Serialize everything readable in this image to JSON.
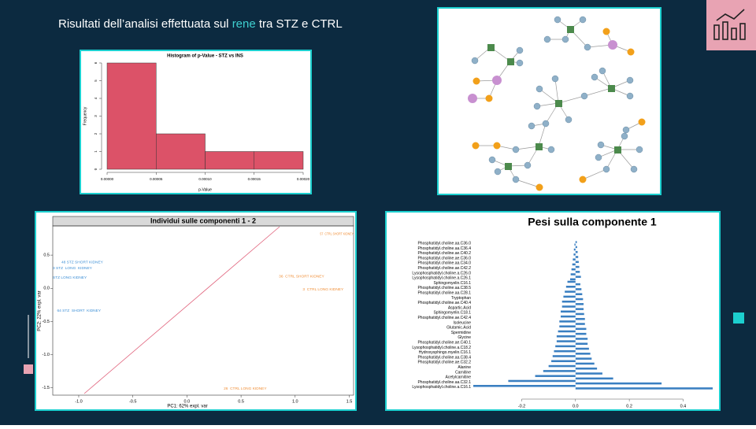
{
  "slide": {
    "title": [
      "Risultati dell’analisi effettuata sul ",
      "rene",
      " tra STZ e CTRL"
    ]
  },
  "chart_data": [
    {
      "type": "histogram",
      "title": "Histogram of p-Value - STZ vs INS",
      "x_label": "p-Value",
      "y_label": "Frequency",
      "bins": [
        0,
        5e-05,
        0.0001,
        0.00015,
        0.0002
      ],
      "values": [
        6,
        2,
        1,
        1
      ],
      "color": "#dc5268",
      "xlim": [
        0,
        0.0002
      ],
      "ylim": [
        0,
        6
      ],
      "xticks": [
        {
          "value": 0,
          "label": "0.00000"
        },
        {
          "value": 5e-05,
          "label": "0.00005"
        },
        {
          "value": 0.0001,
          "label": "0.00010"
        },
        {
          "value": 0.00015,
          "label": "0.00015"
        },
        {
          "value": 0.0002,
          "label": "0.00020"
        }
      ],
      "yticks": [
        0,
        1,
        2,
        3,
        4,
        5,
        6
      ]
    },
    {
      "type": "scatter",
      "title": "Individui sulle componenti 1 - 2",
      "x_label": "PC1: 62% expl. var",
      "y_label": "PC2: 22% expl. var",
      "series": [
        {
          "color": "#3d8fd6",
          "x": [
            -1.16,
            -1.24,
            -1.24,
            -1.2
          ],
          "y": [
            0.39,
            0.3,
            0.16,
            -0.34
          ],
          "labels": [
            "48 STZ SHORT KIDNEY",
            "3 STZ  LONG  KIDNEY",
            "STZ LONG KIDNEY",
            "64 STZ  SHORT  KIDNEY"
          ]
        },
        {
          "color": "#f0903a",
          "x": [
            1.23,
            0.85,
            1.07,
            0.34
          ],
          "y": [
            0.82,
            0.18,
            -0.02,
            -1.51
          ],
          "labels": [
            "57  CTRL SHORT KIDNEY",
            "36  CTRL SHORT KIDNEY",
            "3  CTRL LONG KIDNEY",
            "26  CTRL LONG KIDNEY"
          ]
        }
      ],
      "xlim": [
        -1.24,
        1.54
      ],
      "ylim": [
        -1.61,
        0.94
      ],
      "xticks": [
        {
          "value": -1,
          "label": "-1.0"
        },
        -0.5,
        {
          "value": 0,
          "label": "0.0"
        },
        0.5,
        {
          "value": 1,
          "label": "1.0"
        },
        1.5
      ],
      "yticks": [
        0.5,
        {
          "value": 0,
          "label": "0.0"
        },
        -0.5,
        {
          "value": -1,
          "label": "-1.0"
        },
        -1.5
      ]
    },
    {
      "type": "hbar",
      "title": "Pesi sulla componente 1",
      "color": "#3a7fc1",
      "categories": [
        "Phosphatidyl.choline.aa.C36.0",
        null,
        "Phosphatidyl.choline.aa.C36.4",
        null,
        "Phosphatidyl.choline.ae.C40.2",
        null,
        "Phosphatidyl.choline.ae.C36.0",
        null,
        "Phosphatidyl.choline.aa.C34.0",
        null,
        "Phosphatidyl.choline.ae.C42.2",
        null,
        "Lysophosphatidyl.choline.a.C26.0",
        null,
        "Lysophosphatidyl.choline.a.C26.1",
        null,
        "Sphingomyelin.C16.1",
        null,
        "Phosphatidyl.choline.aa.C38.5",
        null,
        "Phosphatidyl.choline.aa.C28.1",
        null,
        "Tryptophan",
        null,
        "Phosphatidyl.choline.ae.C40.4",
        null,
        "Aspartic.Acid",
        null,
        "Sphingomyelin.C18.1",
        null,
        "Phosphatidyl.choline.ae.C42.4",
        null,
        "Isoleucine",
        null,
        "Glutamic.Acid",
        null,
        "Spermidine",
        null,
        "Glycine",
        null,
        "Phosphatidyl.choline.ae.C40.1",
        null,
        "Lysophosphatidyl.choline.a.C18.2",
        null,
        "Hydroxysphingo.myelin.C16.1",
        null,
        "Phosphatidyl.choline.aa.C38.4",
        null,
        "Phosphatidyl.choline.ae.C32.2",
        null,
        "Alanine",
        null,
        "Carnitine",
        null,
        "Acetylcarnitine",
        null,
        "Phosphatidyl.choline.aa.C32.1",
        null,
        "Lysophosphatidyl.choline.a.C16.1",
        null
      ],
      "values": [
        0.005,
        -0.004,
        0.006,
        -0.006,
        0.008,
        -0.007,
        0.01,
        -0.01,
        0.012,
        -0.012,
        0.014,
        -0.015,
        0.016,
        -0.018,
        0.02,
        -0.02,
        -0.03,
        0.018,
        -0.035,
        0.022,
        -0.04,
        0.025,
        -0.045,
        0.028,
        -0.05,
        0.03,
        -0.05,
        0.03,
        -0.055,
        0.032,
        -0.055,
        0.035,
        -0.06,
        0.035,
        -0.06,
        0.04,
        -0.065,
        0.04,
        -0.07,
        0.045,
        -0.07,
        0.045,
        -0.075,
        0.05,
        -0.08,
        0.055,
        -0.085,
        0.06,
        -0.09,
        0.07,
        -0.1,
        0.08,
        -0.12,
        0.1,
        -0.15,
        0.14,
        -0.25,
        0.32,
        -0.38,
        0.51
      ],
      "xlim": [
        -0.38,
        0.51
      ],
      "xticks": [
        -0.2,
        {
          "value": 0,
          "label": "0.0"
        },
        0.2,
        0.4
      ]
    }
  ]
}
